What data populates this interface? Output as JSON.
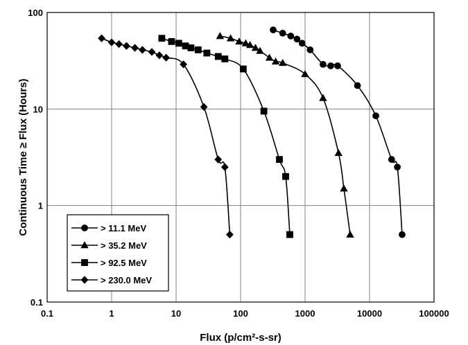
{
  "chart_data": {
    "type": "scatter",
    "x_scale": "log",
    "y_scale": "log",
    "xlim": [
      0.1,
      100000
    ],
    "ylim": [
      0.1,
      100
    ],
    "xlabel": "Flux (p/cm²-s-sr)",
    "ylabel": "Continuous Time ≥ Flux (Hours)",
    "x_ticks": [
      "0.1",
      "1",
      "10",
      "100",
      "1000",
      "10000",
      "100000"
    ],
    "y_ticks": [
      "0.1",
      "1",
      "10",
      "100"
    ],
    "grid": true,
    "legend_position": "bottom-left",
    "series": [
      {
        "name": "> 11.1 MeV",
        "marker": "circle",
        "x": [
          320,
          450,
          600,
          750,
          900,
          1200,
          1900,
          2500,
          3200,
          6500,
          12500,
          22000,
          27000,
          32000
        ],
        "y": [
          66,
          61,
          57,
          53,
          48,
          41,
          29,
          28,
          28,
          17.5,
          8.5,
          3,
          2.5,
          0.5
        ]
      },
      {
        "name": "> 35.2 MeV",
        "marker": "triangle",
        "x": [
          48,
          70,
          95,
          120,
          140,
          170,
          200,
          280,
          350,
          450,
          1000,
          1900,
          3300,
          4000,
          5000
        ],
        "y": [
          57,
          54,
          50,
          48,
          46,
          43,
          40,
          34,
          31,
          30,
          23,
          13,
          3.5,
          1.5,
          0.5
        ]
      },
      {
        "name": "> 92.5 MeV",
        "marker": "square",
        "x": [
          6,
          8.5,
          11,
          14,
          17,
          22,
          30,
          45,
          57,
          110,
          230,
          400,
          500,
          580
        ],
        "y": [
          54,
          50,
          48,
          45,
          43,
          41,
          38,
          35,
          33,
          26,
          9.5,
          3,
          2,
          0.5
        ]
      },
      {
        "name": "> 230.0 MeV",
        "marker": "diamond",
        "x": [
          0.7,
          1,
          1.3,
          1.7,
          2.3,
          3,
          4.2,
          5.5,
          7,
          13,
          27,
          45,
          57,
          68
        ],
        "y": [
          54,
          49,
          47,
          45,
          43,
          41,
          39,
          36,
          34,
          29,
          10.5,
          3,
          2.5,
          0.5
        ]
      }
    ]
  }
}
